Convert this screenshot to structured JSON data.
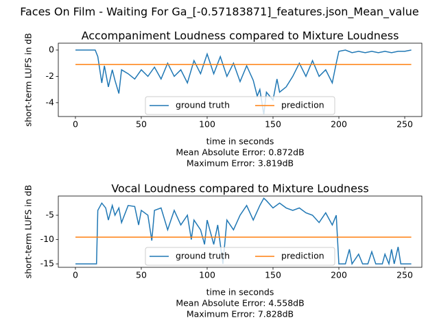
{
  "title": "Faces On Film - Waiting For Ga_[-0.57183871]_features.json_Mean_value",
  "chart_data": [
    {
      "type": "line",
      "title": "Accompaniment Loudness compared to Mixture Loudness",
      "xlabel": [
        "time in seconds",
        "Mean Absolute Error: 0.872dB",
        "Maximum Error: 3.819dB"
      ],
      "ylabel": "short-term LUFS in dB",
      "xlim": [
        -13,
        263
      ],
      "xticks": [
        0,
        50,
        100,
        150,
        200,
        250
      ],
      "ylim": [
        -5.05,
        0.52
      ],
      "yticks": [
        -4,
        -2,
        0
      ],
      "legend": "lower center",
      "series": [
        {
          "name": "ground truth",
          "color": "#1f77b4",
          "x": [
            0,
            5,
            10,
            15,
            17,
            20,
            22,
            25,
            28,
            30,
            33,
            35,
            40,
            45,
            50,
            55,
            60,
            65,
            70,
            75,
            80,
            85,
            90,
            95,
            100,
            105,
            110,
            115,
            120,
            125,
            130,
            135,
            138,
            140,
            143,
            145,
            150,
            153,
            155,
            160,
            165,
            170,
            175,
            180,
            185,
            190,
            195,
            198,
            200,
            205,
            210,
            215,
            220,
            225,
            230,
            235,
            240,
            245,
            250,
            255
          ],
          "values": [
            0,
            0,
            0,
            0,
            -0.5,
            -2.5,
            -1.2,
            -2.8,
            -1.5,
            -2.3,
            -3.3,
            -1.5,
            -1.8,
            -2.2,
            -1.5,
            -2.0,
            -1.3,
            -2.2,
            -1.0,
            -2.0,
            -1.5,
            -2.5,
            -0.8,
            -1.8,
            -0.3,
            -1.8,
            -0.5,
            -2.0,
            -1.0,
            -2.4,
            -1.2,
            -2.3,
            -3.5,
            -3.0,
            -4.9,
            -3.2,
            -3.8,
            -2.2,
            -3.2,
            -2.8,
            -2.0,
            -1.0,
            -2.0,
            -0.8,
            -2.0,
            -1.5,
            -2.5,
            -1.0,
            -0.1,
            0,
            -0.2,
            -0.1,
            -0.2,
            -0.1,
            -0.2,
            -0.1,
            -0.2,
            -0.1,
            -0.1,
            0
          ]
        },
        {
          "name": "prediction",
          "color": "#ff7f0e",
          "x": [
            0,
            255
          ],
          "values": [
            -1.1,
            -1.1
          ]
        }
      ]
    },
    {
      "type": "line",
      "title": "Vocal Loudness compared to Mixture Loudness",
      "xlabel": [
        "time in seconds",
        "Mean Absolute Error: 4.558dB",
        "Maximum Error: 7.828dB"
      ],
      "ylabel": "short-term LUFS in dB",
      "xlim": [
        -13,
        263
      ],
      "xticks": [
        0,
        50,
        100,
        150,
        200,
        250
      ],
      "ylim": [
        -15.7,
        -1.05
      ],
      "yticks": [
        -15,
        -10,
        -5
      ],
      "legend": "lower center",
      "series": [
        {
          "name": "ground truth",
          "color": "#1f77b4",
          "x": [
            0,
            5,
            10,
            15,
            16,
            17,
            20,
            23,
            25,
            28,
            30,
            33,
            35,
            40,
            45,
            48,
            50,
            55,
            58,
            60,
            65,
            70,
            75,
            80,
            85,
            88,
            90,
            95,
            98,
            100,
            105,
            108,
            112,
            115,
            120,
            125,
            130,
            135,
            140,
            143,
            145,
            150,
            155,
            160,
            165,
            170,
            175,
            180,
            185,
            190,
            195,
            198,
            200,
            205,
            208,
            210,
            215,
            218,
            222,
            225,
            228,
            233,
            235,
            238,
            240,
            242,
            245,
            247,
            255
          ],
          "values": [
            -15,
            -15,
            -15,
            -15,
            -15,
            -4,
            -2.5,
            -3.5,
            -6,
            -3,
            -5,
            -3.5,
            -6.5,
            -3,
            -3.2,
            -7,
            -4,
            -5,
            -10.2,
            -4,
            -3.5,
            -8,
            -4,
            -7,
            -5,
            -10,
            -6,
            -8,
            -11,
            -6,
            -11,
            -7,
            -15,
            -6,
            -8,
            -5,
            -3,
            -6,
            -3,
            -1.5,
            -2,
            -3.5,
            -2.5,
            -3.5,
            -4,
            -3.5,
            -4.5,
            -5,
            -6.5,
            -4.5,
            -7,
            -5,
            -15,
            -15,
            -12,
            -15,
            -13,
            -15,
            -15,
            -12.5,
            -15,
            -15,
            -13,
            -15,
            -12,
            -15,
            -11.5,
            -15,
            -15
          ]
        },
        {
          "name": "prediction",
          "color": "#ff7f0e",
          "x": [
            0,
            255
          ],
          "values": [
            -9.5,
            -9.5
          ]
        }
      ]
    }
  ]
}
